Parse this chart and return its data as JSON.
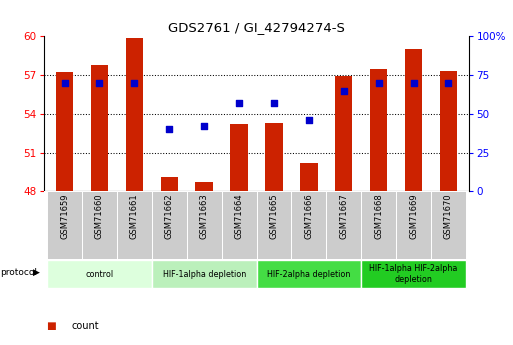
{
  "title": "GDS2761 / GI_42794274-S",
  "samples": [
    "GSM71659",
    "GSM71660",
    "GSM71661",
    "GSM71662",
    "GSM71663",
    "GSM71664",
    "GSM71665",
    "GSM71666",
    "GSM71667",
    "GSM71668",
    "GSM71669",
    "GSM71670"
  ],
  "count_values": [
    57.2,
    57.75,
    59.9,
    49.1,
    48.7,
    53.2,
    53.3,
    50.2,
    56.9,
    57.5,
    59.0,
    57.3
  ],
  "percentile_values": [
    70,
    70,
    70,
    40,
    42,
    57,
    57,
    46,
    65,
    70,
    70,
    70
  ],
  "ylim_left": [
    48,
    60
  ],
  "ylim_right": [
    0,
    100
  ],
  "yticks_left": [
    48,
    51,
    54,
    57,
    60
  ],
  "yticks_right": [
    0,
    25,
    50,
    75,
    100
  ],
  "bar_color": "#cc2200",
  "dot_color": "#0000cc",
  "bar_width": 0.5,
  "dot_size": 16,
  "protocol_groups": [
    {
      "label": "control",
      "start": 0,
      "end": 2,
      "color": "#ddffdd"
    },
    {
      "label": "HIF-1alpha depletion",
      "start": 3,
      "end": 5,
      "color": "#bbf0bb"
    },
    {
      "label": "HIF-2alpha depletion",
      "start": 6,
      "end": 8,
      "color": "#44dd44"
    },
    {
      "label": "HIF-1alpha HIF-2alpha\ndepletion",
      "start": 9,
      "end": 11,
      "color": "#22cc22"
    }
  ],
  "fig_width": 5.13,
  "fig_height": 3.45,
  "dpi": 100
}
